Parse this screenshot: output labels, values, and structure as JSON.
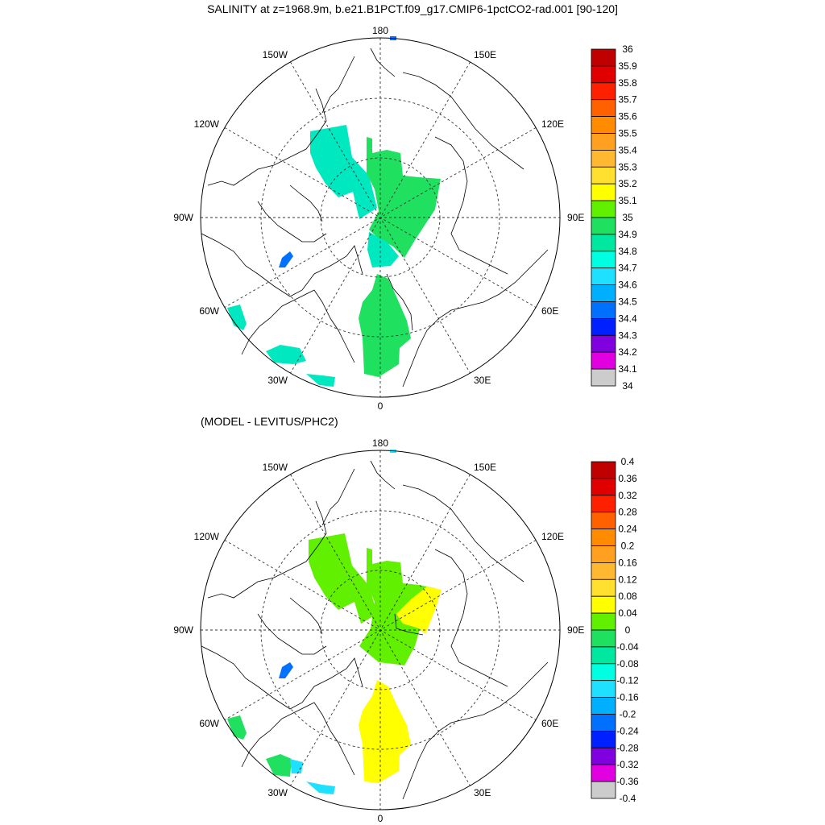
{
  "title": "SALINITY at z=1968.9m, b.e21.B1PCT.f09_g17.CMIP6-1pctCO2-rad.001 [90-120]",
  "subtitle": "(MODEL - LEVITUS/PHC2)",
  "lon_labels": {
    "top": "180",
    "bottom": "0",
    "left": "90W",
    "right": "90E",
    "upper_left_1": "150W",
    "upper_left_2": "120W",
    "upper_right_1": "150E",
    "upper_right_2": "120E",
    "lower_left_1": "60W",
    "lower_left_2": "30W",
    "lower_right_1": "60E",
    "lower_right_2": "30E"
  },
  "colorbar_top": {
    "labels": [
      "36",
      "35.9",
      "35.8",
      "35.7",
      "35.6",
      "35.5",
      "35.4",
      "35.3",
      "35.2",
      "35.1",
      "35",
      "34.9",
      "34.8",
      "34.7",
      "34.6",
      "34.5",
      "34.4",
      "34.3",
      "34.2",
      "34.1",
      "34"
    ],
    "colors": [
      "#c00000",
      "#e00000",
      "#ff2000",
      "#ff6000",
      "#ff8c00",
      "#ffa020",
      "#ffb830",
      "#ffe030",
      "#ffff00",
      "#60f000",
      "#20e060",
      "#00e8a0",
      "#00ffe0",
      "#20e0ff",
      "#00b0ff",
      "#0070ff",
      "#0020ff",
      "#8000e0",
      "#e000e0",
      "#cccccc",
      "#707070"
    ]
  },
  "colorbar_bottom": {
    "labels": [
      "0.4",
      "0.36",
      "0.32",
      "0.28",
      "0.24",
      "0.2",
      "0.16",
      "0.12",
      "0.08",
      "0.04",
      "0",
      "-0.04",
      "-0.08",
      "-0.12",
      "-0.16",
      "-0.2",
      "-0.24",
      "-0.28",
      "-0.32",
      "-0.36",
      "-0.4"
    ],
    "colors": [
      "#c00000",
      "#e00000",
      "#ff2000",
      "#ff6000",
      "#ff8c00",
      "#ffa020",
      "#ffb830",
      "#ffe030",
      "#ffff00",
      "#60f000",
      "#20e060",
      "#00e8a0",
      "#00ffe0",
      "#20e0ff",
      "#00b0ff",
      "#0070ff",
      "#0020ff",
      "#8000e0",
      "#e000e0",
      "#cccccc",
      "#707070"
    ]
  }
}
